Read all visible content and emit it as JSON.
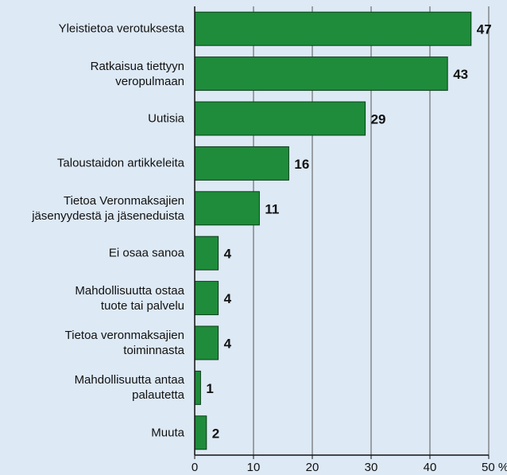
{
  "chart_data": {
    "type": "bar",
    "orientation": "horizontal",
    "categories": [
      "Yleistietoa verotuksesta",
      "Ratkaisua tiettyyn\nveropulmaan",
      "Uutisia",
      "Taloustaidon artikkeleita",
      "Tietoa Veronmaksajien\njäsenyydestä ja jäseneduista",
      "Ei osaa sanoa",
      "Mahdollisuutta ostaa\ntuote tai palvelu",
      "Tietoa veronmaksajien\ntoiminnasta",
      "Mahdollisuutta antaa\npalautetta",
      "Muuta"
    ],
    "values": [
      47,
      43,
      29,
      16,
      11,
      4,
      4,
      4,
      1,
      2
    ],
    "color": "#1e8c3a",
    "xlim": [
      0,
      50
    ],
    "xticks": [
      0,
      10,
      20,
      30,
      40,
      {
        "value": 50,
        "label": "50 %"
      }
    ],
    "grid": true
  }
}
